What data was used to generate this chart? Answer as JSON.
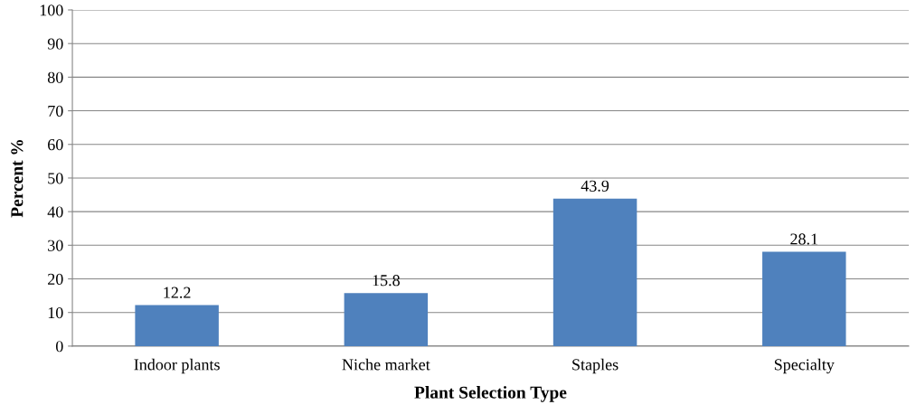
{
  "chart_data": {
    "type": "bar",
    "xlabel": "Plant Selection Type",
    "ylabel": "Percent %",
    "categories": [
      "Indoor plants",
      "Niche market",
      "Staples",
      "Specialty"
    ],
    "values": [
      12.2,
      15.8,
      43.9,
      28.1
    ],
    "color": "#4f81bd",
    "ylim": [
      0,
      100
    ],
    "yticks": [
      0,
      10,
      20,
      30,
      40,
      50,
      60,
      70,
      80,
      90,
      100
    ],
    "grid": "y",
    "data_labels": true
  }
}
